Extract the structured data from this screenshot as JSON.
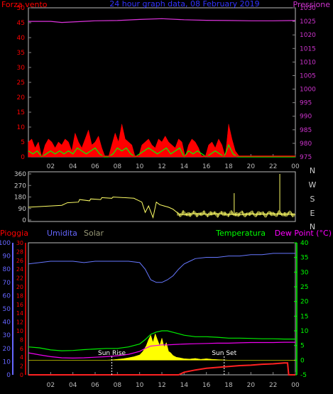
{
  "chart_data": [
    {
      "type": "line",
      "title": "24 hour graph data, 08 February 2019",
      "left_axis": {
        "label": "Forza vento",
        "color": "#ff0000",
        "ticks": [
          0,
          5,
          10,
          15,
          20,
          25,
          30,
          35,
          40,
          45,
          50
        ],
        "range": [
          0,
          50
        ]
      },
      "right_axis": {
        "label": "Pressione",
        "color": "#cc33cc",
        "ticks": [
          975,
          980,
          985,
          990,
          995,
          1000,
          1005,
          1010,
          1015,
          1020,
          1025,
          1030
        ],
        "range": [
          975,
          1030
        ]
      },
      "x_ticks": [
        "02",
        "04",
        "06",
        "08",
        "10",
        "12",
        "14",
        "16",
        "18",
        "20",
        "22",
        "00"
      ],
      "series": [
        {
          "key": "pressure",
          "color": "#dd33dd",
          "x": [
            0,
            2,
            3,
            4,
            6,
            8,
            10,
            12,
            14,
            16,
            18,
            20,
            22,
            24
          ],
          "y": [
            1025,
            1025,
            1024.6,
            1024.8,
            1025.2,
            1025.3,
            1025.7,
            1026,
            1025.6,
            1025.4,
            1025.3,
            1025.2,
            1025.2,
            1025.3
          ]
        },
        {
          "key": "wind_gust",
          "color": "#ff0000",
          "x": [
            0,
            0.3,
            0.6,
            0.9,
            1.2,
            1.5,
            1.8,
            2.1,
            2.4,
            2.7,
            3,
            3.3,
            3.6,
            3.9,
            4.2,
            4.5,
            4.8,
            5.1,
            5.4,
            5.7,
            6,
            6.3,
            6.6,
            6.9,
            7.2,
            7.5,
            7.8,
            8.1,
            8.4,
            8.7,
            9,
            9.3,
            9.6,
            9.9,
            10.2,
            10.5,
            10.8,
            11.1,
            11.4,
            11.7,
            12,
            12.3,
            12.6,
            12.9,
            13.2,
            13.5,
            13.8,
            14.1,
            14.4,
            14.7,
            15,
            15.3,
            15.6,
            15.9,
            16.2,
            16.5,
            16.8,
            17.1,
            17.4,
            17.7,
            18,
            18.3,
            18.6,
            19,
            20,
            22,
            24
          ],
          "y": [
            5,
            6,
            3,
            5,
            0,
            4,
            6,
            5,
            3,
            5,
            4,
            6,
            5,
            2,
            8,
            5,
            3,
            6,
            9,
            4,
            5,
            7,
            3,
            0,
            0,
            4,
            8,
            5,
            11,
            6,
            5,
            4,
            0,
            0,
            4,
            5,
            6,
            4,
            3,
            6,
            5,
            7,
            5,
            4,
            3,
            6,
            5,
            0,
            4,
            6,
            5,
            3,
            0,
            0,
            4,
            5,
            3,
            6,
            4,
            0,
            11,
            6,
            2,
            0,
            0,
            0,
            0
          ]
        },
        {
          "key": "wind_avg",
          "color": "#00ff00",
          "x": [
            0,
            0.4,
            0.8,
            1.2,
            1.6,
            2,
            2.4,
            2.8,
            3.2,
            3.6,
            4,
            4.4,
            4.8,
            5.2,
            5.6,
            6,
            6.4,
            6.8,
            7.2,
            7.6,
            8,
            8.4,
            8.8,
            9.2,
            9.6,
            10,
            10.4,
            10.8,
            11.2,
            11.6,
            12,
            12.4,
            12.8,
            13.2,
            13.6,
            14,
            14.4,
            14.8,
            15.2,
            15.6,
            16,
            16.4,
            16.8,
            17.2,
            17.6,
            18,
            18.4,
            18.8,
            19,
            24
          ],
          "y": [
            2,
            1,
            2,
            0,
            1,
            2,
            1,
            2,
            1,
            2,
            1,
            3,
            2,
            1,
            2,
            3,
            1,
            0,
            0,
            1,
            3,
            2,
            3,
            1,
            0,
            1,
            2,
            3,
            2,
            1,
            2,
            3,
            1,
            2,
            3,
            0,
            2,
            1,
            2,
            1,
            0,
            1,
            2,
            1,
            0,
            4,
            1,
            0,
            0,
            0
          ]
        }
      ]
    },
    {
      "type": "line",
      "right_labels": [
        "N",
        "W",
        "S",
        "E",
        "N"
      ],
      "left_axis": {
        "ticks": [
          0,
          90,
          180,
          270,
          360
        ],
        "range": [
          0,
          360
        ]
      },
      "series": [
        {
          "key": "wind_dir",
          "color": "#ffff66",
          "x": [
            0,
            1,
            2,
            3,
            3.5,
            4.5,
            4.6,
            5.5,
            5.6,
            6.5,
            6.6,
            7.5,
            7.6,
            8.5,
            8.6,
            9.5,
            9.6,
            10.2,
            10.5,
            10.8,
            11.2,
            11.5,
            11.8,
            12.2,
            12.6,
            13,
            13.5,
            14,
            14.5,
            15,
            16,
            17,
            18,
            19,
            20,
            21,
            22,
            23,
            24
          ],
          "y": [
            100,
            105,
            110,
            115,
            135,
            140,
            160,
            150,
            165,
            160,
            175,
            170,
            180,
            175,
            175,
            170,
            165,
            140,
            60,
            110,
            20,
            140,
            120,
            110,
            100,
            85,
            50,
            40,
            45,
            50,
            45,
            50,
            45,
            40,
            48,
            45,
            50,
            45,
            42
          ]
        }
      ]
    },
    {
      "type": "line",
      "labels": {
        "rain": "Pioggia",
        "humidity": "Umidita",
        "solar": "Solar",
        "temperature": "Temperatura",
        "dew": "Dew Point (°C)"
      },
      "axis_colors": {
        "rain": "#ff0000",
        "humidity": "#6666ff",
        "solar": "#999977",
        "temperature": "#00ff00",
        "dew": "#ff00ff"
      },
      "humidity_axis": {
        "ticks": [
          0,
          10,
          20,
          30,
          40,
          50,
          60,
          70,
          80,
          90,
          100
        ],
        "range": [
          0,
          100
        ]
      },
      "rain_axis": {
        "ticks": [
          0,
          2,
          4,
          6,
          8,
          10,
          12,
          14,
          16,
          18,
          20,
          22,
          24,
          26,
          28,
          30
        ],
        "range": [
          0,
          30
        ]
      },
      "temp_axis": {
        "ticks": [
          -5,
          0,
          5,
          10,
          15,
          20,
          25,
          30,
          35,
          40
        ],
        "range": [
          -5,
          40
        ]
      },
      "x_ticks": [
        "02",
        "04",
        "06",
        "08",
        "10",
        "12",
        "14",
        "16",
        "18",
        "20",
        "22",
        "00"
      ],
      "annotations": {
        "sunrise": "Sun Rise",
        "sunset": "Sun Set",
        "sunrise_hour": 7.5,
        "sunset_hour": 17.6
      },
      "series": [
        {
          "key": "humidity",
          "color": "#6677ff",
          "x": [
            0,
            1,
            2,
            3,
            4,
            5,
            6,
            7,
            8,
            9,
            10,
            10.5,
            11,
            11.5,
            12,
            12.5,
            13,
            13.5,
            14,
            14.5,
            15,
            16,
            17,
            18,
            19,
            20,
            21,
            22,
            23,
            24
          ],
          "y": [
            84,
            85,
            86,
            86,
            86,
            85,
            86,
            86,
            86,
            86,
            85,
            80,
            72,
            70,
            70,
            72,
            75,
            80,
            84,
            86,
            88,
            89,
            89,
            90,
            90,
            91,
            91,
            92,
            92,
            92
          ]
        },
        {
          "key": "temperature",
          "color": "#00ee00",
          "x": [
            0,
            1,
            2,
            3,
            4,
            5,
            6,
            7,
            8,
            9,
            10,
            10.5,
            11,
            11.5,
            12,
            12.5,
            13,
            13.5,
            14,
            15,
            16,
            17,
            18,
            19,
            20,
            21,
            22,
            23,
            24
          ],
          "y": [
            4.5,
            4.2,
            3.5,
            3.2,
            3.3,
            3.6,
            3.8,
            4,
            4,
            4.5,
            5.5,
            7,
            8.8,
            9.6,
            10,
            10,
            9.5,
            9,
            8.5,
            8,
            8,
            7.8,
            7.5,
            7.5,
            7.4,
            7.3,
            7.3,
            7.2,
            7.2
          ]
        },
        {
          "key": "dew_point",
          "color": "#ee00ee",
          "x": [
            0,
            1,
            2,
            3,
            4,
            5,
            6,
            7,
            8,
            9,
            10,
            10.5,
            11,
            11.5,
            12,
            12.5,
            13,
            13.5,
            14,
            15,
            16,
            17,
            18,
            19,
            20,
            21,
            22,
            23,
            24
          ],
          "y": [
            2.5,
            1.8,
            1.2,
            0.8,
            0.7,
            0.8,
            1,
            1.2,
            1.5,
            2,
            3,
            4,
            4.8,
            5,
            5.2,
            5.2,
            5.3,
            5.4,
            5.5,
            5.6,
            5.7,
            5.8,
            5.8,
            5.9,
            6,
            6,
            6,
            6.1,
            6.1
          ]
        },
        {
          "key": "rain",
          "color": "#ff2222",
          "x": [
            0,
            13.5,
            14,
            15,
            16,
            17,
            18,
            19,
            20,
            21,
            22,
            22.5,
            23,
            23.3,
            23.4,
            24
          ],
          "y": [
            0,
            0,
            0.6,
            1.1,
            1.5,
            1.7,
            1.9,
            2.1,
            2.2,
            2.4,
            2.5,
            2.6,
            2.7,
            2.7,
            0,
            0
          ]
        },
        {
          "key": "solar",
          "color": "#ffff00",
          "x": [
            0,
            7,
            7.5,
            8,
            8.5,
            9,
            9.5,
            10,
            10.3,
            10.6,
            10.8,
            11,
            11.2,
            11.4,
            11.6,
            11.8,
            12,
            12.2,
            12.4,
            12.6,
            12.8,
            13,
            13.3,
            13.6,
            14,
            14.5,
            15,
            15.5,
            16,
            16.5,
            17,
            17.5,
            18,
            24
          ],
          "y": [
            0,
            0,
            0.1,
            0.3,
            0.5,
            0.8,
            1.2,
            1.8,
            3,
            5,
            7,
            8.5,
            6,
            9,
            7,
            5,
            7.5,
            4.5,
            6,
            3,
            2.5,
            1.6,
            1,
            0.8,
            0.5,
            0.4,
            0.6,
            0.3,
            0.5,
            0.3,
            0.2,
            0.1,
            0,
            0
          ]
        }
      ]
    }
  ]
}
